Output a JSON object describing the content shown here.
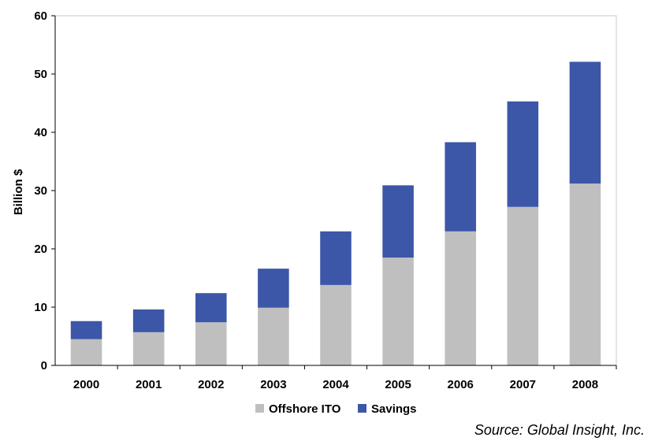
{
  "chart_data": {
    "type": "bar",
    "stacked": true,
    "categories": [
      "2000",
      "2001",
      "2002",
      "2003",
      "2004",
      "2005",
      "2006",
      "2007",
      "2008"
    ],
    "series": [
      {
        "name": "Offshore ITO",
        "color": "#c0bfc0",
        "values": [
          4.5,
          5.7,
          7.4,
          9.9,
          13.8,
          18.5,
          23.0,
          27.2,
          31.2
        ]
      },
      {
        "name": "Savings",
        "color": "#3c56a8",
        "values": [
          3.1,
          3.9,
          5.0,
          6.7,
          9.2,
          12.4,
          15.3,
          18.1,
          20.9
        ]
      }
    ],
    "title": "",
    "xlabel": "",
    "ylabel": "Billion $",
    "ylim": [
      0,
      60
    ],
    "yticks": [
      "0",
      "10",
      "20",
      "30",
      "40",
      "50",
      "60"
    ],
    "grid": false,
    "legend_position": "bottom",
    "source": "Source: Global Insight, Inc."
  }
}
